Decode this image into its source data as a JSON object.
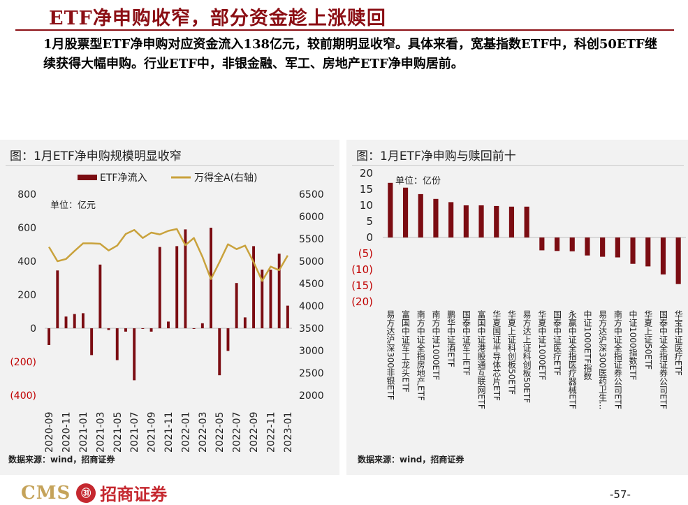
{
  "header": {
    "title": "ETF净申购收窄，部分资金趁上涨赎回",
    "paragraph": "1月股票型ETF净申购对应资金流入138亿元，较前期明显收窄。具体来看，宽基指数ETF中，科创50ETF继续获得大幅申购。行业ETF中，非银金融、军工、房地产ETF净申购居前。"
  },
  "left_panel": {
    "title": "图：1月ETF净申购规模明显收窄",
    "unit": "单位：亿元",
    "source": "数据来源：wind，招商证券"
  },
  "right_panel": {
    "title": "图：1月ETF净申购与赎回前十",
    "unit": "单位：亿份",
    "source": "数据来源：wind，招商证券"
  },
  "footer": {
    "brand": "CMS",
    "badge": "㉛",
    "cn_name": "招商证券",
    "page": "-57-"
  },
  "colors": {
    "bar": "#7b0c12",
    "line": "#c9a23c",
    "accent": "#8b0e14"
  },
  "chart_data": [
    {
      "type": "bar",
      "legend": [
        "ETF净流入",
        "万得全A(右轴)"
      ],
      "x": [
        "2020-09",
        "2020-10",
        "2020-11",
        "2020-12",
        "2021-01",
        "2021-02",
        "2021-03",
        "2021-04",
        "2021-05",
        "2021-06",
        "2021-07",
        "2021-08",
        "2021-09",
        "2021-10",
        "2021-11",
        "2021-12",
        "2022-01",
        "2022-02",
        "2022-03",
        "2022-04",
        "2022-05",
        "2022-06",
        "2022-07",
        "2022-08",
        "2022-09",
        "2022-10",
        "2022-11",
        "2022-12",
        "2023-01"
      ],
      "x_ticks": [
        "2020-09",
        "2020-11",
        "2021-01",
        "2021-03",
        "2021-05",
        "2021-07",
        "2021-09",
        "2021-11",
        "2022-01",
        "2022-03",
        "2022-05",
        "2022-07",
        "2022-09",
        "2022-11",
        "2023-01"
      ],
      "series": [
        {
          "name": "ETF净流入",
          "type": "bar",
          "axis": "left",
          "values": [
            -100,
            345,
            70,
            85,
            90,
            -160,
            380,
            -10,
            -190,
            -20,
            -310,
            0,
            -20,
            485,
            40,
            490,
            590,
            0,
            30,
            600,
            -280,
            -135,
            270,
            65,
            490,
            350,
            350,
            445,
            135
          ]
        },
        {
          "name": "万得全A(右轴)",
          "type": "line",
          "axis": "right",
          "values": [
            5320,
            5000,
            5050,
            5230,
            5400,
            5400,
            5390,
            5240,
            5350,
            5610,
            5700,
            5520,
            5640,
            5600,
            5680,
            5720,
            5360,
            5520,
            5100,
            4600,
            4980,
            5380,
            5270,
            5350,
            4980,
            4560,
            4880,
            4800,
            5130
          ]
        }
      ],
      "y_left": {
        "ylim": [
          -400,
          800
        ],
        "ticks": [
          "800",
          "600",
          "400",
          "200",
          "0",
          "(200)",
          "(400)"
        ]
      },
      "y_right": {
        "ylim": [
          2000,
          6500
        ],
        "ticks": [
          "6500",
          "6000",
          "5500",
          "5000",
          "4500",
          "4000",
          "3500",
          "3000",
          "2500",
          "2000"
        ]
      }
    },
    {
      "type": "bar",
      "categories": [
        "易方达沪深300非银ETF",
        "富国中证军工龙头ETF",
        "南方中证全指房地产ETF",
        "南方中证1000ETF",
        "鹏华中证酒ETF",
        "国泰中证军工ETF",
        "富国中证港股通互联网ETF",
        "华夏国证半导体芯片ETF",
        "华夏上证科创板50ETF",
        "易方达上证科创板50ETF",
        "华夏中证1000ETF",
        "国泰中证医疗ETF",
        "永赢中证全指医疗器械ETF",
        "中证1000ETF指数",
        "易方达沪深300医药卫生...",
        "南方中证全指证券公司ETF",
        "中证1000指数ETF",
        "华夏上证50ETF",
        "国泰中证全指证券公司ETF",
        "华宝中证医疗ETF"
      ],
      "values": [
        17,
        15.5,
        13.5,
        12,
        11,
        10,
        10,
        9.8,
        9.6,
        9.6,
        -4,
        -4.2,
        -4.3,
        -5.6,
        -6,
        -6.2,
        -8.2,
        -9,
        -11.5,
        -14.5
      ],
      "ylim": [
        -20,
        20
      ],
      "y_ticks": [
        "20",
        "15",
        "10",
        "5",
        "0",
        "(5)",
        "(10)",
        "(15)",
        "(20)"
      ]
    }
  ]
}
